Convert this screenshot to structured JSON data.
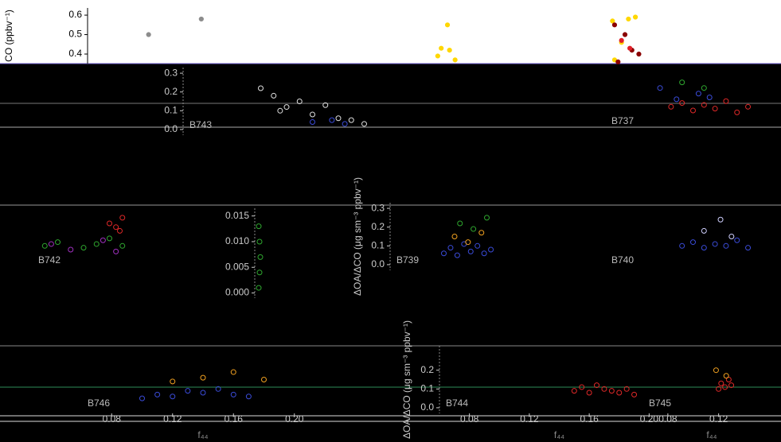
{
  "chart_data": [
    {
      "type": "scatter",
      "theme": "light",
      "ylabel": "CO (ppbv⁻¹)",
      "xlim": [
        0,
        1
      ],
      "ylim": [
        0.351,
        0.637
      ],
      "yticks": [
        0.4,
        0.5,
        0.6
      ],
      "series": [
        {
          "color": "#8c8c8c",
          "x": [
            0.088,
            0.164
          ],
          "values": [
            0.5,
            0.58
          ]
        },
        {
          "color": "#ffd700",
          "x": [
            0.519,
            0.51,
            0.522,
            0.505,
            0.53,
            0.757,
            0.78,
            0.79,
            0.76,
            0.77
          ],
          "values": [
            0.55,
            0.43,
            0.42,
            0.39,
            0.37,
            0.57,
            0.58,
            0.59,
            0.37,
            0.46
          ]
        },
        {
          "color": "#8b0000",
          "x": [
            0.76,
            0.775,
            0.785,
            0.795,
            0.765
          ],
          "values": [
            0.55,
            0.5,
            0.42,
            0.4,
            0.36
          ]
        },
        {
          "color": "#e0202a",
          "x": [
            0.77,
            0.782
          ],
          "values": [
            0.47,
            0.43
          ]
        }
      ]
    },
    {
      "type": "scatter",
      "title": "B743",
      "xlim": [
        0.06,
        0.22
      ],
      "ylim": [
        -0.03,
        0.33
      ],
      "yticks": [
        {
          "value": 0,
          "label": "0.0"
        },
        0.1,
        0.2,
        0.3
      ],
      "series": [
        {
          "color": "#e0e0e0",
          "x": [
            0.12,
            0.13,
            0.135,
            0.14,
            0.15,
            0.16,
            0.17,
            0.18,
            0.19,
            0.2
          ],
          "values": [
            0.22,
            0.18,
            0.1,
            0.12,
            0.15,
            0.08,
            0.13,
            0.06,
            0.05,
            0.03
          ]
        },
        {
          "color": "#3a4bd8",
          "x": [
            0.16,
            0.175,
            0.185
          ],
          "values": [
            0.04,
            0.05,
            0.03
          ]
        }
      ]
    },
    {
      "type": "scatter",
      "title": "B737",
      "xlim": [
        0.06,
        0.22
      ],
      "ylim": [
        -0.03,
        0.33
      ],
      "series": [
        {
          "color": "#e02828",
          "x": [
            0.12,
            0.13,
            0.14,
            0.15,
            0.16,
            0.17,
            0.18,
            0.19
          ],
          "values": [
            0.1,
            0.12,
            0.08,
            0.11,
            0.09,
            0.13,
            0.07,
            0.1
          ]
        },
        {
          "color": "#3a4bd8",
          "x": [
            0.11,
            0.125,
            0.145,
            0.155
          ],
          "values": [
            0.2,
            0.14,
            0.17,
            0.15
          ]
        },
        {
          "color": "#2fa82f",
          "x": [
            0.13,
            0.15
          ],
          "values": [
            0.23,
            0.2
          ]
        }
      ]
    },
    {
      "type": "scatter",
      "title": "B742",
      "xlim": [
        0.06,
        0.22
      ],
      "ylim": [
        -0.03,
        0.33
      ],
      "series": [
        {
          "color": "#2fa82f",
          "x": [
            0.07,
            0.08,
            0.1,
            0.11,
            0.12,
            0.13
          ],
          "values": [
            0.1,
            0.12,
            0.09,
            0.11,
            0.14,
            0.1
          ]
        },
        {
          "color": "#a030c0",
          "x": [
            0.075,
            0.09,
            0.115,
            0.125
          ],
          "values": [
            0.11,
            0.08,
            0.13,
            0.07
          ]
        },
        {
          "color": "#e02828",
          "x": [
            0.12,
            0.125,
            0.13,
            0.128
          ],
          "values": [
            0.22,
            0.2,
            0.25,
            0.18
          ]
        }
      ]
    },
    {
      "type": "scatter",
      "title": "B739",
      "ylabel": "ΔOA/ΔCO (μg sm⁻³ ppbv⁻¹)",
      "xlim": [
        0.06,
        0.22
      ],
      "ylim": [
        -0.03,
        0.33
      ],
      "yticks": [
        {
          "value": 0,
          "label": "0.0"
        },
        0.1,
        0.2,
        0.3
      ],
      "series": [
        {
          "color": "#3a4bd8",
          "x": [
            0.1,
            0.105,
            0.11,
            0.115,
            0.12,
            0.125,
            0.13,
            0.135
          ],
          "values": [
            0.06,
            0.09,
            0.05,
            0.11,
            0.07,
            0.1,
            0.06,
            0.08
          ]
        },
        {
          "color": "#f0a020",
          "x": [
            0.108,
            0.118,
            0.128
          ],
          "values": [
            0.15,
            0.12,
            0.17
          ]
        },
        {
          "color": "#2fa82f",
          "x": [
            0.112,
            0.122,
            0.132
          ],
          "values": [
            0.22,
            0.19,
            0.25
          ]
        }
      ]
    },
    {
      "type": "scatter",
      "title": "B740",
      "xlim": [
        0.06,
        0.22
      ],
      "ylim": [
        -0.03,
        0.33
      ],
      "series": [
        {
          "color": "#3a4bd8",
          "x": [
            0.13,
            0.14,
            0.15,
            0.16,
            0.17,
            0.18,
            0.19
          ],
          "values": [
            0.1,
            0.12,
            0.09,
            0.11,
            0.1,
            0.13,
            0.09
          ]
        },
        {
          "color": "#d0d0ff",
          "x": [
            0.15,
            0.165,
            0.175
          ],
          "values": [
            0.18,
            0.24,
            0.15
          ]
        }
      ]
    },
    {
      "type": "scatter",
      "title": "B746",
      "xlabel": "f₄₄",
      "xlim": [
        0.06,
        0.22
      ],
      "ylim": [
        -0.03,
        0.33
      ],
      "xticks": [
        0.08,
        0.12,
        0.16,
        {
          "value": 0.2,
          "label": "0.20"
        }
      ],
      "series": [
        {
          "color": "#3a4bd8",
          "x": [
            0.1,
            0.11,
            0.12,
            0.13,
            0.14,
            0.15,
            0.16,
            0.17
          ],
          "values": [
            0.05,
            0.07,
            0.06,
            0.09,
            0.08,
            0.1,
            0.07,
            0.06
          ]
        },
        {
          "color": "#f0a020",
          "x": [
            0.12,
            0.14,
            0.16,
            0.18
          ],
          "values": [
            0.14,
            0.16,
            0.19,
            0.15
          ]
        }
      ]
    },
    {
      "type": "scatter",
      "title": "B744",
      "xlabel": "f₄₄",
      "ylabel": "ΔOA/ΔCO (μg sm⁻³ ppbv⁻¹)",
      "xlim": [
        0.06,
        0.22
      ],
      "ylim": [
        -0.03,
        0.33
      ],
      "yticks": [
        {
          "value": 0,
          "label": "0.0"
        },
        0.1,
        0.2
      ],
      "xticks": [
        0.08,
        0.12,
        0.16,
        {
          "value": 0.2,
          "label": "0.20"
        }
      ],
      "series": [
        {
          "color": "#e02828",
          "x": [
            0.15,
            0.155,
            0.16,
            0.165,
            0.17,
            0.175,
            0.18,
            0.185,
            0.19
          ],
          "values": [
            0.09,
            0.11,
            0.08,
            0.12,
            0.1,
            0.09,
            0.08,
            0.1,
            0.07
          ]
        }
      ]
    },
    {
      "type": "scatter",
      "title": "B745",
      "xlabel": "f₄₄",
      "xlim": [
        0.06,
        0.22
      ],
      "ylim": [
        -0.03,
        0.33
      ],
      "xticks": [
        0.08,
        0.12
      ],
      "series": [
        {
          "color": "#e02828",
          "x": [
            0.12,
            0.122,
            0.125,
            0.128,
            0.13
          ],
          "values": [
            0.1,
            0.13,
            0.11,
            0.15,
            0.12
          ]
        },
        {
          "color": "#f0a020",
          "x": [
            0.118,
            0.126
          ],
          "values": [
            0.2,
            0.17
          ]
        }
      ]
    },
    {
      "type": "scatter",
      "xlim": [
        0.06,
        0.22
      ],
      "ylim": [
        -0.001,
        0.0165
      ],
      "yticks": [
        {
          "value": 0,
          "label": "0.000"
        },
        0.005,
        {
          "value": 0.01,
          "label": "0.010"
        },
        0.015
      ],
      "series": [
        {
          "color": "#2fa82f",
          "x": [
            0.065,
            0.066,
            0.067,
            0.066,
            0.065
          ],
          "values": [
            0.001,
            0.004,
            0.007,
            0.01,
            0.013
          ]
        }
      ]
    }
  ]
}
